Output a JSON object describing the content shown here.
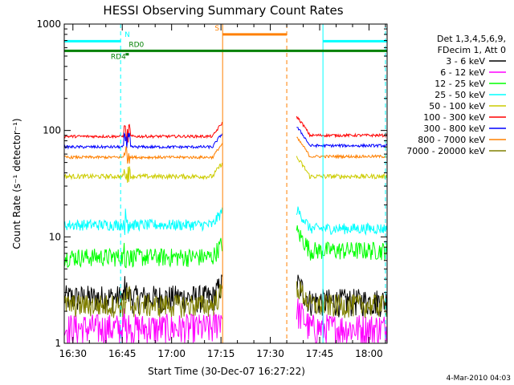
{
  "chart_data": {
    "type": "line",
    "title": "HESSI Observing Summary Count Rates",
    "xlabel": "Start Time (30-Dec-07 16:27:22)",
    "ylabel": "Count Rate (s⁻¹ detector⁻¹)",
    "x_ticks": [
      "16:30",
      "16:45",
      "17:00",
      "17:15",
      "17:30",
      "17:45",
      "18:00"
    ],
    "y_ticks": [
      "1",
      "10",
      "100",
      "1000"
    ],
    "y_scale": "log",
    "ylim": [
      1,
      1000
    ],
    "xlim": [
      "16:27:22",
      "18:05:30"
    ],
    "grid": false,
    "legend": {
      "placement": "right",
      "header": [
        "Det 1,3,4,5,6,9,",
        "FDecim 1, Att 0"
      ]
    },
    "gaps": [
      [
        "17:15:30",
        "17:38:00"
      ]
    ],
    "series": [
      {
        "name": "3 - 6 keV",
        "color": "#000000",
        "level_before": 2.7,
        "level_after": 2.5,
        "noise": 0.3
      },
      {
        "name": "6 - 12 keV",
        "color": "#ff00ff",
        "level_before": 1.4,
        "level_after": 1.4,
        "noise": 0.35
      },
      {
        "name": "12 - 25 keV",
        "color": "#00ff00",
        "level_before": 6.5,
        "level_after": 7.5,
        "noise": 0.2
      },
      {
        "name": "25 - 50 keV",
        "color": "#00ffff",
        "level_before": 13,
        "level_after": 12,
        "noise": 0.12
      },
      {
        "name": "50 - 100 keV",
        "color": "#cccc00",
        "level_before": 37,
        "level_after": 37,
        "noise": 0.05
      },
      {
        "name": "100 - 300 keV",
        "color": "#ff0000",
        "level_before": 88,
        "level_after": 90,
        "noise": 0.03
      },
      {
        "name": "300 - 800 keV",
        "color": "#0000ff",
        "level_before": 70,
        "level_after": 72,
        "noise": 0.03
      },
      {
        "name": "800 - 7000 keV",
        "color": "#ff8000",
        "level_before": 56,
        "level_after": 57,
        "noise": 0.03
      },
      {
        "name": "7000 - 20000 keV",
        "color": "#808000",
        "level_before": 2.3,
        "level_after": 2.3,
        "noise": 0.25
      }
    ],
    "annotations": [
      {
        "text": "N",
        "color": "#00ffff"
      },
      {
        "text": "RD0",
        "color": "#008000"
      },
      {
        "text": "RD4",
        "color": "#008000"
      },
      {
        "text": "S",
        "color": "#ff8000"
      }
    ],
    "flag_bars": [
      {
        "name": "N",
        "color": "#00ffff",
        "level": 690,
        "segments": [
          [
            "16:27:22",
            "16:44:30"
          ],
          [
            "17:46:00",
            "18:05:30"
          ]
        ]
      },
      {
        "name": "RD0",
        "color": "#008000",
        "level": 560,
        "segments": [
          [
            "16:27:22",
            "18:05:30"
          ]
        ]
      },
      {
        "name": "S",
        "color": "#ff8000",
        "level": 800,
        "segments": [
          [
            "17:15:30",
            "17:35:00"
          ]
        ]
      }
    ],
    "vlines": [
      {
        "time": "16:27:22",
        "color": "#00ffff",
        "style": "solid"
      },
      {
        "time": "16:44:30",
        "color": "#00ffff",
        "style": "dashed"
      },
      {
        "time": "17:15:30",
        "color": "#ff8000",
        "style": "solid"
      },
      {
        "time": "17:35:00",
        "color": "#ff8000",
        "style": "dashed"
      },
      {
        "time": "17:46:00",
        "color": "#00ffff",
        "style": "solid"
      },
      {
        "time": "18:05:00",
        "color": "#00ffff",
        "style": "dashed"
      }
    ]
  },
  "footer": {
    "date": "4-Mar-2010 04:03"
  }
}
